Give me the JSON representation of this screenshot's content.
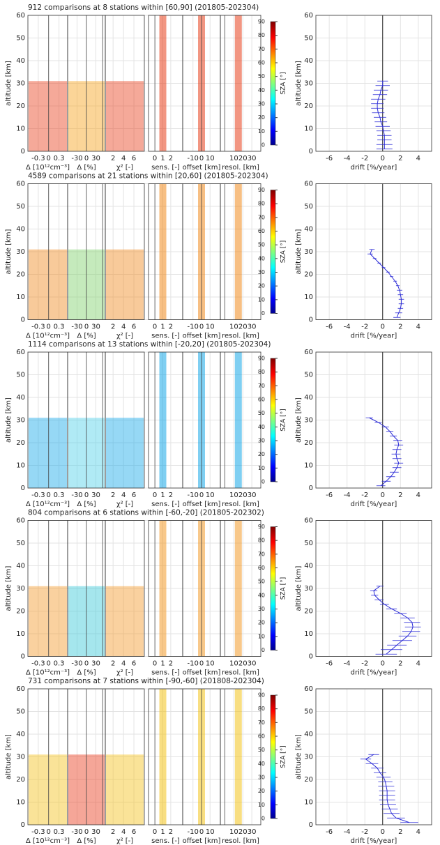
{
  "chart_data": [
    {
      "type": "profile",
      "title": "912 comparisons at 8 stations within [60,90] (201805-202304)",
      "ylabel": "altitude [km]",
      "ylim": [
        0,
        60
      ],
      "yticks": [
        0,
        10,
        20,
        30,
        40,
        50,
        60
      ],
      "panels": [
        {
          "xlabel": "Δ [10¹²cm⁻³]",
          "xlim": [
            -0.6,
            0.55
          ],
          "xticks": [
            -0.3,
            0,
            0.3
          ]
        },
        {
          "xlabel": "Δ [%]",
          "xlim": [
            -60,
            60
          ],
          "xticks": [
            -30,
            0,
            30
          ]
        },
        {
          "xlabel": "χ² [-]",
          "xlim": [
            0.5,
            8
          ],
          "xticks": [
            2,
            4,
            6
          ]
        },
        {
          "xlabel": "sens. [-]",
          "xlim": [
            -0.8,
            3.5
          ],
          "xticks": [
            0,
            1,
            2
          ]
        },
        {
          "xlabel": "offset [km]",
          "xlim": [
            -22,
            22
          ],
          "xticks": [
            -10,
            0,
            10
          ]
        },
        {
          "xlabel": "resol. [km]",
          "xlim": [
            -5,
            40
          ],
          "xticks": [
            10,
            20,
            30
          ]
        }
      ],
      "colorbar": {
        "label": "SZA [°]",
        "lim": [
          0,
          90
        ],
        "ticks": [
          0,
          10,
          20,
          30,
          40,
          50,
          60,
          70,
          80,
          90
        ]
      },
      "drift": {
        "type": "line",
        "xlabel": "drift [%/year]",
        "ylabel": "altitude [km]",
        "xlim": [
          -7.5,
          5.5
        ],
        "xticks": [
          -6,
          -4,
          -2,
          0,
          2,
          4
        ],
        "altitude": [
          1,
          3,
          5,
          7,
          9,
          11,
          13,
          15,
          17,
          19,
          21,
          23,
          25,
          27,
          29,
          31
        ],
        "values": [
          0.2,
          0.2,
          0.2,
          0.2,
          0.1,
          0.0,
          -0.2,
          -0.3,
          -0.5,
          -0.6,
          -0.6,
          -0.5,
          -0.3,
          -0.2,
          0.0,
          0.0
        ],
        "errors": [
          0.9,
          0.9,
          0.8,
          0.8,
          0.8,
          0.8,
          0.7,
          0.7,
          0.7,
          0.7,
          0.7,
          0.8,
          0.8,
          0.8,
          0.8,
          0.6
        ]
      }
    },
    {
      "type": "profile",
      "title": "4589 comparisons at 21 stations within [20,60] (201805-202304)",
      "ylabel": "altitude [km]",
      "ylim": [
        0,
        60
      ],
      "yticks": [
        0,
        10,
        20,
        30,
        40,
        50,
        60
      ],
      "panels": [
        {
          "xlabel": "Δ [10¹²cm⁻³]",
          "xlim": [
            -0.6,
            0.55
          ],
          "xticks": [
            -0.3,
            0,
            0.3
          ]
        },
        {
          "xlabel": "Δ [%]",
          "xlim": [
            -60,
            60
          ],
          "xticks": [
            -30,
            0,
            30
          ]
        },
        {
          "xlabel": "χ² [-]",
          "xlim": [
            0.5,
            8
          ],
          "xticks": [
            2,
            4,
            6
          ]
        },
        {
          "xlabel": "sens. [-]",
          "xlim": [
            -0.8,
            3.5
          ],
          "xticks": [
            0,
            1,
            2
          ]
        },
        {
          "xlabel": "offset [km]",
          "xlim": [
            -22,
            22
          ],
          "xticks": [
            -10,
            0,
            10
          ]
        },
        {
          "xlabel": "resol. [km]",
          "xlim": [
            -5,
            40
          ],
          "xticks": [
            10,
            20,
            30
          ]
        }
      ],
      "colorbar": {
        "label": "SZA [°]",
        "lim": [
          0,
          90
        ],
        "ticks": [
          0,
          10,
          20,
          30,
          40,
          50,
          60,
          70,
          80,
          90
        ]
      },
      "drift": {
        "type": "line",
        "xlabel": "drift [%/year]",
        "ylabel": "altitude [km]",
        "xlim": [
          -7.5,
          5.5
        ],
        "xticks": [
          -6,
          -4,
          -2,
          0,
          2,
          4
        ],
        "altitude": [
          1,
          3,
          5,
          7,
          9,
          11,
          13,
          15,
          17,
          19,
          21,
          23,
          25,
          27,
          29,
          31
        ],
        "values": [
          1.6,
          1.8,
          2.0,
          2.1,
          2.1,
          2.0,
          1.9,
          1.7,
          1.4,
          1.0,
          0.6,
          0.1,
          -0.4,
          -0.9,
          -1.4,
          -1.2
        ],
        "errors": [
          0.4,
          0.4,
          0.3,
          0.3,
          0.3,
          0.3,
          0.3,
          0.2,
          0.2,
          0.2,
          0.2,
          0.2,
          0.2,
          0.2,
          0.3,
          0.3
        ]
      }
    },
    {
      "type": "profile",
      "title": "1114 comparisons at 13 stations within [-20,20] (201805-202304)",
      "ylabel": "altitude [km]",
      "ylim": [
        0,
        60
      ],
      "yticks": [
        0,
        10,
        20,
        30,
        40,
        50,
        60
      ],
      "panels": [
        {
          "xlabel": "Δ [10¹²cm⁻³]",
          "xlim": [
            -0.6,
            0.55
          ],
          "xticks": [
            -0.3,
            0,
            0.3
          ]
        },
        {
          "xlabel": "Δ [%]",
          "xlim": [
            -60,
            60
          ],
          "xticks": [
            -30,
            0,
            30
          ]
        },
        {
          "xlabel": "χ² [-]",
          "xlim": [
            0.5,
            8
          ],
          "xticks": [
            2,
            4,
            6
          ]
        },
        {
          "xlabel": "sens. [-]",
          "xlim": [
            -0.8,
            3.5
          ],
          "xticks": [
            0,
            1,
            2
          ]
        },
        {
          "xlabel": "offset [km]",
          "xlim": [
            -22,
            22
          ],
          "xticks": [
            -10,
            0,
            10
          ]
        },
        {
          "xlabel": "resol. [km]",
          "xlim": [
            -5,
            40
          ],
          "xticks": [
            10,
            20,
            30
          ]
        }
      ],
      "colorbar": {
        "label": "SZA [°]",
        "lim": [
          0,
          90
        ],
        "ticks": [
          0,
          10,
          20,
          30,
          40,
          50,
          60,
          70,
          80,
          90
        ]
      },
      "drift": {
        "type": "line",
        "xlabel": "drift [%/year]",
        "ylabel": "altitude [km]",
        "xlim": [
          -7.5,
          5.5
        ],
        "xticks": [
          -6,
          -4,
          -2,
          0,
          2,
          4
        ],
        "altitude": [
          1,
          3,
          5,
          7,
          9,
          11,
          13,
          15,
          17,
          19,
          21,
          23,
          25,
          27,
          29,
          31
        ],
        "values": [
          -0.2,
          0.4,
          0.9,
          1.3,
          1.6,
          1.8,
          1.6,
          1.5,
          1.6,
          1.8,
          1.7,
          1.2,
          0.8,
          0.3,
          -0.5,
          -1.5
        ],
        "errors": [
          0.5,
          0.5,
          0.5,
          0.5,
          0.5,
          0.5,
          0.5,
          0.5,
          0.5,
          0.5,
          0.5,
          0.4,
          0.4,
          0.4,
          0.4,
          0.4
        ]
      }
    },
    {
      "type": "profile",
      "title": "804 comparisons at 6 stations within [-60,-20] (201805-202302)",
      "ylabel": "altitude [km]",
      "ylim": [
        0,
        60
      ],
      "yticks": [
        0,
        10,
        20,
        30,
        40,
        50,
        60
      ],
      "panels": [
        {
          "xlabel": "Δ [10¹²cm⁻³]",
          "xlim": [
            -0.6,
            0.55
          ],
          "xticks": [
            -0.3,
            0,
            0.3
          ]
        },
        {
          "xlabel": "Δ [%]",
          "xlim": [
            -60,
            60
          ],
          "xticks": [
            -30,
            0,
            30
          ]
        },
        {
          "xlabel": "χ² [-]",
          "xlim": [
            0.5,
            8
          ],
          "xticks": [
            2,
            4,
            6
          ]
        },
        {
          "xlabel": "sens. [-]",
          "xlim": [
            -0.8,
            3.5
          ],
          "xticks": [
            0,
            1,
            2
          ]
        },
        {
          "xlabel": "offset [km]",
          "xlim": [
            -22,
            22
          ],
          "xticks": [
            -10,
            0,
            10
          ]
        },
        {
          "xlabel": "resol. [km]",
          "xlim": [
            -5,
            40
          ],
          "xticks": [
            10,
            20,
            30
          ]
        }
      ],
      "colorbar": {
        "label": "SZA [°]",
        "lim": [
          0,
          90
        ],
        "ticks": [
          0,
          10,
          20,
          30,
          40,
          50,
          60,
          70,
          80,
          90
        ]
      },
      "drift": {
        "type": "line",
        "xlabel": "drift [%/year]",
        "ylabel": "altitude [km]",
        "xlim": [
          -7.5,
          5.5
        ],
        "xticks": [
          -6,
          -4,
          -2,
          0,
          2,
          4
        ],
        "altitude": [
          1,
          3,
          5,
          7,
          9,
          11,
          13,
          15,
          17,
          19,
          21,
          23,
          25,
          27,
          29,
          31
        ],
        "values": [
          0.4,
          1.0,
          1.6,
          2.2,
          2.8,
          3.2,
          3.4,
          3.3,
          2.8,
          2.0,
          1.0,
          0.2,
          -0.4,
          -0.9,
          -1.0,
          -0.3
        ],
        "errors": [
          1.2,
          1.2,
          1.1,
          1.1,
          1.0,
          1.0,
          0.9,
          0.9,
          0.8,
          0.7,
          0.6,
          0.5,
          0.5,
          0.4,
          0.4,
          0.4
        ]
      }
    },
    {
      "type": "profile",
      "title": "731 comparisons at 7 stations within [-90,-60] (201808-202304)",
      "ylabel": "altitude [km]",
      "ylim": [
        0,
        60
      ],
      "yticks": [
        0,
        10,
        20,
        30,
        40,
        50,
        60
      ],
      "panels": [
        {
          "xlabel": "Δ [10¹²cm⁻³]",
          "xlim": [
            -0.6,
            0.55
          ],
          "xticks": [
            -0.3,
            0,
            0.3
          ]
        },
        {
          "xlabel": "Δ [%]",
          "xlim": [
            -60,
            60
          ],
          "xticks": [
            -30,
            0,
            30
          ]
        },
        {
          "xlabel": "χ² [-]",
          "xlim": [
            0.5,
            8
          ],
          "xticks": [
            2,
            4,
            6
          ]
        },
        {
          "xlabel": "sens. [-]",
          "xlim": [
            -0.8,
            3.5
          ],
          "xticks": [
            0,
            1,
            2
          ]
        },
        {
          "xlabel": "offset [km]",
          "xlim": [
            -22,
            22
          ],
          "xticks": [
            -10,
            0,
            10
          ]
        },
        {
          "xlabel": "resol. [km]",
          "xlim": [
            -5,
            40
          ],
          "xticks": [
            10,
            20,
            30
          ]
        }
      ],
      "colorbar": {
        "label": "SZA [°]",
        "lim": [
          0,
          90
        ],
        "ticks": [
          0,
          10,
          20,
          30,
          40,
          50,
          60,
          70,
          80,
          90
        ]
      },
      "drift": {
        "type": "line",
        "xlabel": "drift [%/year]",
        "ylabel": "altitude [km]",
        "xlim": [
          -7.5,
          5.5
        ],
        "xticks": [
          -6,
          -4,
          -2,
          0,
          2,
          4
        ],
        "altitude": [
          1,
          3,
          5,
          7,
          9,
          11,
          13,
          15,
          17,
          19,
          21,
          23,
          25,
          27,
          29,
          31
        ],
        "values": [
          3.0,
          1.5,
          1.0,
          0.8,
          0.6,
          0.5,
          0.5,
          0.5,
          0.4,
          0.3,
          0.1,
          -0.3,
          -0.6,
          -1.2,
          -1.9,
          -1.0
        ],
        "errors": [
          1.0,
          1.0,
          0.9,
          0.9,
          0.9,
          0.9,
          0.9,
          0.9,
          0.9,
          0.8,
          0.8,
          0.7,
          0.7,
          0.7,
          0.6,
          0.6
        ]
      }
    }
  ]
}
